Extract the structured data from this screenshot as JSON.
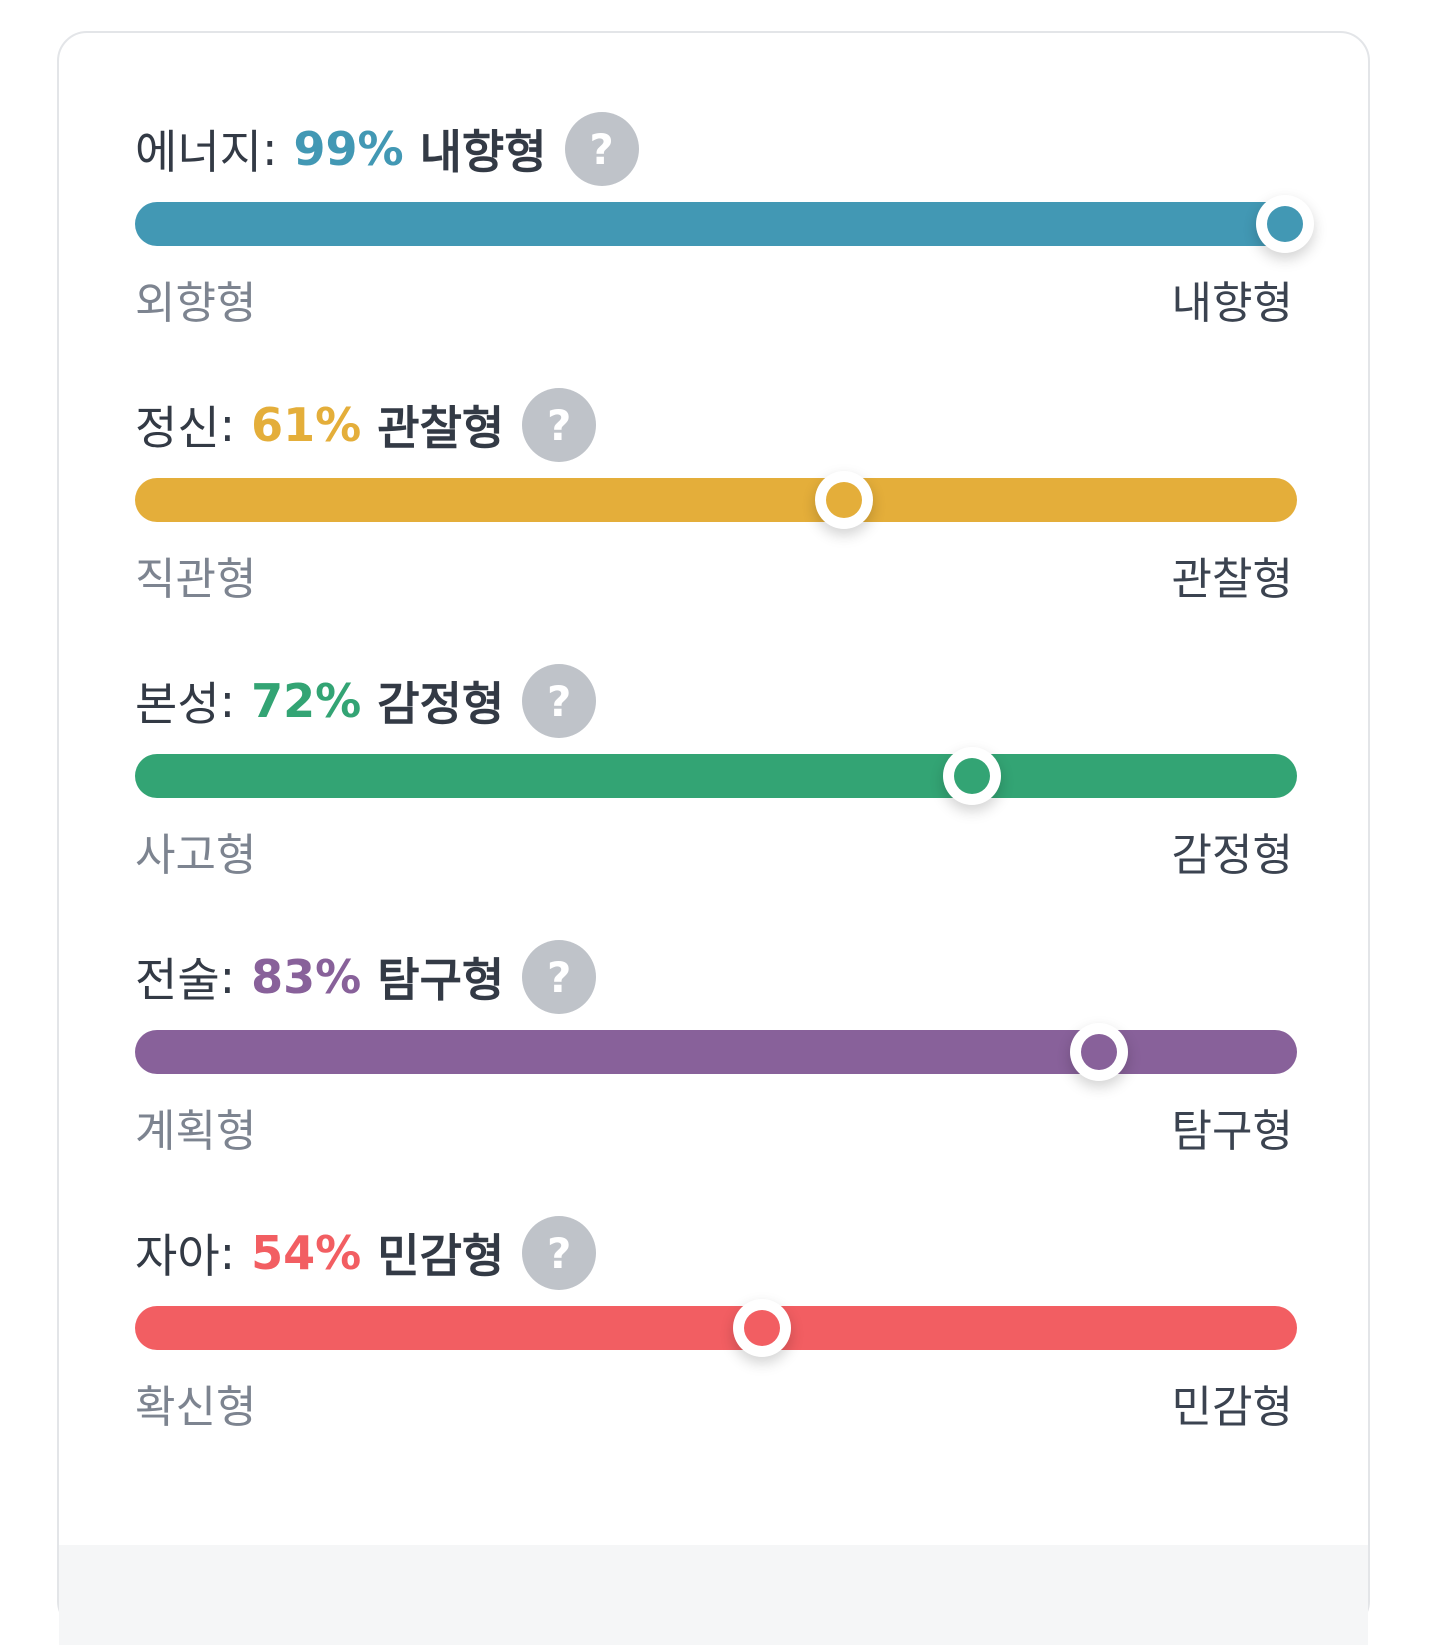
{
  "traits": [
    {
      "name": "에너지",
      "colon": ":",
      "percent": "99%",
      "percent_value": 99,
      "result": "내향형",
      "help": "?",
      "left_label": "외향형",
      "right_label": "내향형",
      "color": "#4298b4",
      "position": 0.99
    },
    {
      "name": "정신",
      "colon": ":",
      "percent": "61%",
      "percent_value": 61,
      "result": "관찰형",
      "help": "?",
      "left_label": "직관형",
      "right_label": "관찰형",
      "color": "#e4ae3a",
      "position": 0.61
    },
    {
      "name": "본성",
      "colon": ":",
      "percent": "72%",
      "percent_value": 72,
      "result": "감정형",
      "help": "?",
      "left_label": "사고형",
      "right_label": "감정형",
      "color": "#33a474",
      "position": 0.72
    },
    {
      "name": "전술",
      "colon": ":",
      "percent": "83%",
      "percent_value": 83,
      "result": "탐구형",
      "help": "?",
      "left_label": "계획형",
      "right_label": "탐구형",
      "color": "#88619a",
      "position": 0.83
    },
    {
      "name": "자아",
      "colon": ":",
      "percent": "54%",
      "percent_value": 54,
      "result": "민감형",
      "help": "?",
      "left_label": "확신형",
      "right_label": "민감형",
      "color": "#f25e62",
      "position": 0.54
    }
  ]
}
